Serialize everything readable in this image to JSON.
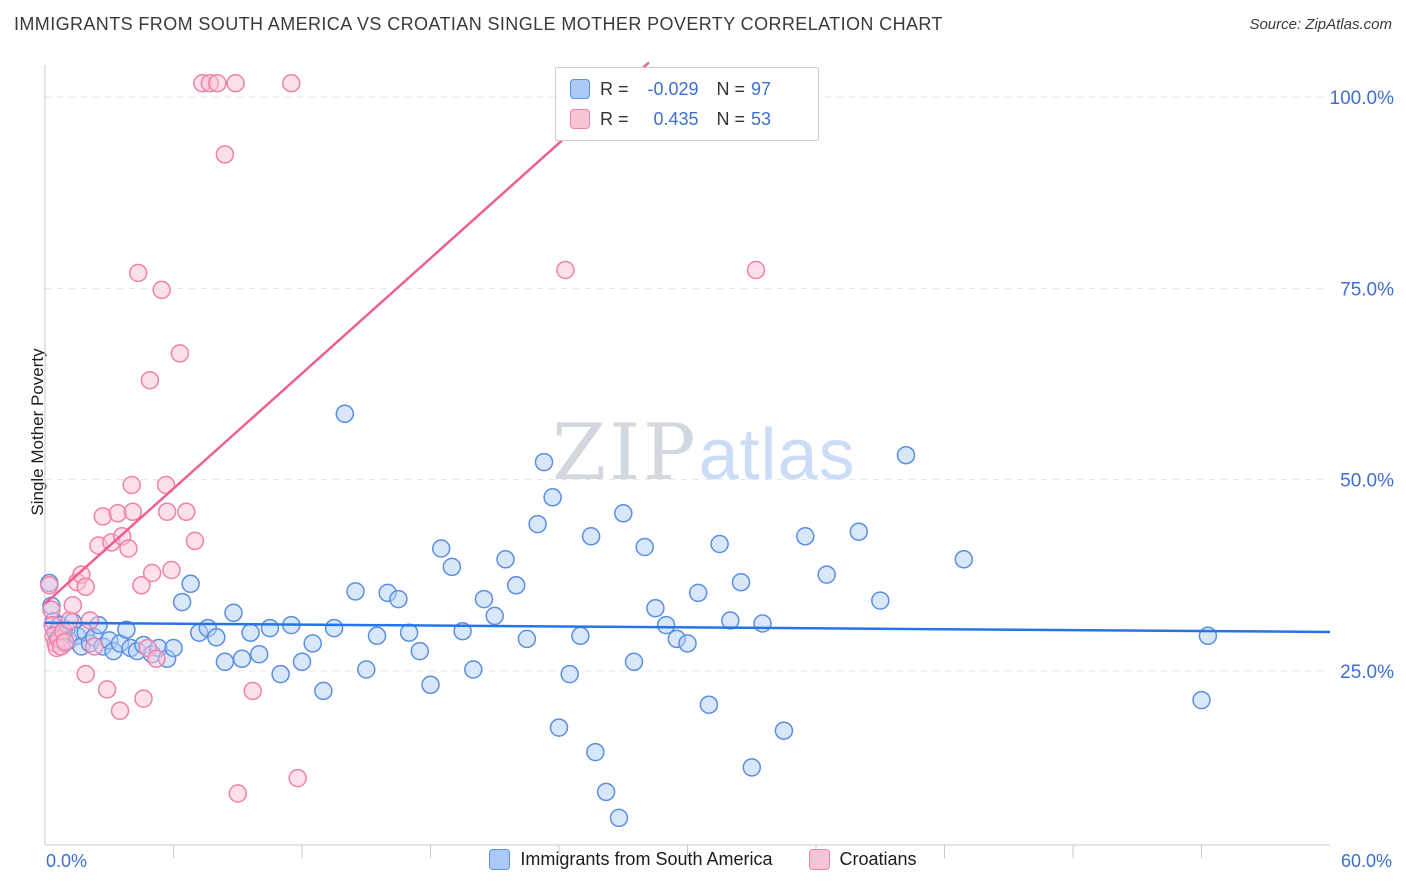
{
  "header": {
    "title": "IMMIGRANTS FROM SOUTH AMERICA VS CROATIAN SINGLE MOTHER POVERTY CORRELATION CHART",
    "source": "Source: ZipAtlas.com"
  },
  "watermark": {
    "zip": "ZIP",
    "atlas": "atlas"
  },
  "y_axis_title": "Single Mother Poverty",
  "legend_box": {
    "rows": [
      {
        "r_label": "R =",
        "r_value": "-0.029",
        "n_label": "N =",
        "n_value": "97"
      },
      {
        "r_label": "R =",
        "r_value": "0.435",
        "n_label": "N =",
        "n_value": "53"
      }
    ]
  },
  "chart_data": {
    "type": "scatter",
    "title": "Immigrants from South America vs Croatian Single Mother Poverty",
    "x_range": [
      0,
      60
    ],
    "y_range": [
      0,
      105
    ],
    "x_label_min": "0.0%",
    "x_label_max": "60.0%",
    "grid": "dashed-horizontal",
    "legend_position": "bottom",
    "y_gridlines": [
      25,
      50,
      75,
      100
    ],
    "y_tick_labels": [
      {
        "value": 100,
        "label": "100.0%"
      },
      {
        "value": 75,
        "label": "75.0%"
      },
      {
        "value": 50,
        "label": "50.0%"
      },
      {
        "value": 25,
        "label": "25.0%"
      }
    ],
    "x_minor_ticks": [
      6,
      12,
      18,
      24,
      30,
      36,
      42,
      48,
      54
    ],
    "series": [
      {
        "name": "Immigrants from South America",
        "r": -0.029,
        "n": 97,
        "color": "#5b8fe0",
        "fill": "#b3d0f7",
        "points": [
          [
            0.2,
            36.5
          ],
          [
            0.3,
            33.5
          ],
          [
            0.4,
            31.5
          ],
          [
            0.5,
            30.0
          ],
          [
            0.6,
            29.2
          ],
          [
            0.7,
            31.0
          ],
          [
            0.8,
            29.6
          ],
          [
            0.9,
            28.6
          ],
          [
            1.0,
            30.4
          ],
          [
            1.1,
            29.0
          ],
          [
            1.3,
            31.4
          ],
          [
            1.5,
            29.6
          ],
          [
            1.7,
            28.2
          ],
          [
            1.9,
            30.0
          ],
          [
            2.1,
            28.6
          ],
          [
            2.3,
            29.4
          ],
          [
            2.5,
            31.0
          ],
          [
            2.7,
            28.2
          ],
          [
            3.0,
            29.0
          ],
          [
            3.2,
            27.6
          ],
          [
            3.5,
            28.6
          ],
          [
            3.8,
            30.4
          ],
          [
            4.0,
            28.0
          ],
          [
            4.3,
            27.6
          ],
          [
            4.6,
            28.4
          ],
          [
            5.0,
            27.2
          ],
          [
            5.3,
            28.0
          ],
          [
            5.7,
            26.6
          ],
          [
            6.0,
            28.0
          ],
          [
            6.4,
            34.0
          ],
          [
            6.8,
            36.4
          ],
          [
            7.2,
            30.0
          ],
          [
            7.6,
            30.6
          ],
          [
            8.0,
            29.4
          ],
          [
            8.4,
            26.2
          ],
          [
            8.8,
            32.6
          ],
          [
            9.2,
            26.6
          ],
          [
            9.6,
            30.0
          ],
          [
            10.0,
            27.2
          ],
          [
            10.5,
            30.6
          ],
          [
            11.0,
            24.6
          ],
          [
            11.5,
            31.0
          ],
          [
            12.0,
            26.2
          ],
          [
            12.5,
            28.6
          ],
          [
            13.0,
            22.4
          ],
          [
            13.5,
            30.6
          ],
          [
            14.0,
            58.6
          ],
          [
            14.5,
            35.4
          ],
          [
            15.0,
            25.2
          ],
          [
            15.5,
            29.6
          ],
          [
            16.0,
            35.2
          ],
          [
            16.5,
            34.4
          ],
          [
            17.0,
            30.0
          ],
          [
            17.5,
            27.6
          ],
          [
            18.0,
            23.2
          ],
          [
            18.5,
            41.0
          ],
          [
            19.0,
            38.6
          ],
          [
            19.5,
            30.2
          ],
          [
            20.0,
            25.2
          ],
          [
            20.5,
            34.4
          ],
          [
            21.0,
            32.2
          ],
          [
            21.5,
            39.6
          ],
          [
            22.0,
            36.2
          ],
          [
            22.5,
            29.2
          ],
          [
            23.0,
            44.2
          ],
          [
            23.3,
            52.3
          ],
          [
            23.7,
            47.7
          ],
          [
            24.0,
            17.6
          ],
          [
            24.5,
            24.6
          ],
          [
            25.0,
            29.6
          ],
          [
            25.5,
            42.6
          ],
          [
            25.7,
            14.4
          ],
          [
            26.2,
            9.2
          ],
          [
            26.8,
            5.8
          ],
          [
            27.0,
            45.6
          ],
          [
            27.5,
            26.2
          ],
          [
            28.0,
            41.2
          ],
          [
            28.5,
            33.2
          ],
          [
            29.0,
            31.0
          ],
          [
            29.5,
            29.2
          ],
          [
            30.0,
            28.6
          ],
          [
            30.5,
            35.2
          ],
          [
            31.0,
            20.6
          ],
          [
            31.5,
            41.6
          ],
          [
            32.0,
            31.6
          ],
          [
            32.5,
            36.6
          ],
          [
            33.0,
            12.4
          ],
          [
            33.5,
            31.2
          ],
          [
            34.5,
            17.2
          ],
          [
            35.5,
            42.6
          ],
          [
            36.5,
            37.6
          ],
          [
            38.0,
            43.2
          ],
          [
            39.0,
            34.2
          ],
          [
            40.2,
            53.2
          ],
          [
            42.9,
            39.6
          ],
          [
            54.0,
            21.2
          ],
          [
            54.3,
            29.6
          ]
        ]
      },
      {
        "name": "Croatians",
        "r": 0.435,
        "n": 53,
        "color": "#ef82aa",
        "fill": "#fac4d8",
        "points": [
          [
            0.2,
            36.2
          ],
          [
            0.3,
            33.0
          ],
          [
            0.35,
            31.0
          ],
          [
            0.4,
            29.6
          ],
          [
            0.5,
            28.6
          ],
          [
            0.55,
            28.0
          ],
          [
            0.65,
            29.2
          ],
          [
            0.75,
            28.2
          ],
          [
            0.85,
            30.2
          ],
          [
            0.95,
            28.8
          ],
          [
            1.15,
            31.6
          ],
          [
            1.3,
            33.6
          ],
          [
            1.5,
            36.6
          ],
          [
            1.7,
            37.6
          ],
          [
            1.9,
            36.0
          ],
          [
            2.1,
            31.6
          ],
          [
            2.3,
            28.2
          ],
          [
            1.9,
            24.6
          ],
          [
            2.5,
            41.4
          ],
          [
            2.7,
            45.2
          ],
          [
            2.9,
            22.6
          ],
          [
            3.1,
            41.8
          ],
          [
            3.4,
            45.6
          ],
          [
            3.6,
            42.6
          ],
          [
            3.5,
            19.8
          ],
          [
            3.9,
            41.0
          ],
          [
            4.05,
            49.3
          ],
          [
            4.1,
            45.8
          ],
          [
            4.35,
            77.0
          ],
          [
            4.5,
            36.2
          ],
          [
            4.6,
            21.4
          ],
          [
            4.8,
            28.0
          ],
          [
            4.9,
            63.0
          ],
          [
            5.0,
            37.8
          ],
          [
            5.2,
            26.6
          ],
          [
            5.45,
            74.8
          ],
          [
            5.65,
            49.3
          ],
          [
            5.7,
            45.8
          ],
          [
            5.9,
            38.2
          ],
          [
            6.3,
            66.5
          ],
          [
            6.6,
            45.8
          ],
          [
            7.0,
            42.0
          ],
          [
            7.35,
            101.8
          ],
          [
            7.7,
            101.8
          ],
          [
            8.05,
            101.8
          ],
          [
            8.4,
            92.5
          ],
          [
            8.9,
            101.8
          ],
          [
            9.0,
            9.0
          ],
          [
            9.7,
            22.4
          ],
          [
            11.5,
            101.8
          ],
          [
            11.8,
            11.0
          ],
          [
            24.3,
            77.4
          ],
          [
            33.2,
            77.4
          ]
        ]
      }
    ],
    "trend_lines": [
      {
        "series": "Immigrants from South America",
        "color": "#2575e8",
        "x1": 0,
        "y1": 31.3,
        "x2": 60,
        "y2": 30.1
      },
      {
        "series": "Croatians",
        "color": "#ee5f94",
        "x1": 0,
        "y1": 33.8,
        "x2": 28.2,
        "y2": 104.5
      }
    ]
  }
}
